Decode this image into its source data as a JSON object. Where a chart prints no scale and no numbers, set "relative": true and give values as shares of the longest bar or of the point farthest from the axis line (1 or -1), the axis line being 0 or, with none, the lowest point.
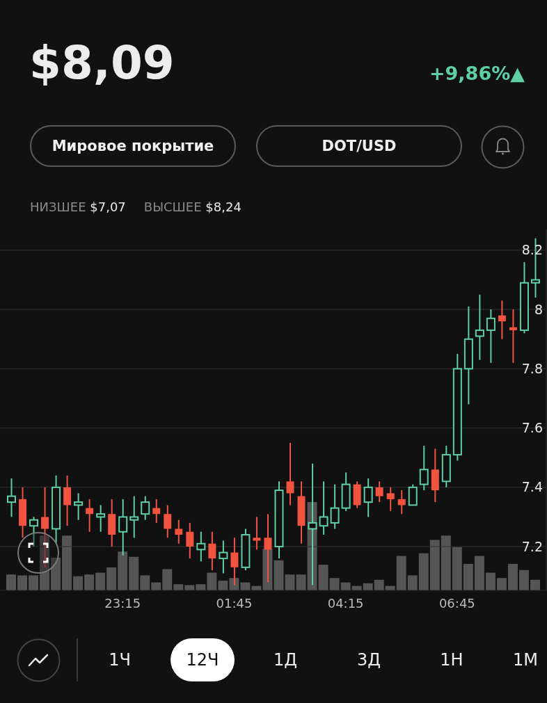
{
  "chart_data": [
    {
      "type": "candlestick",
      "title": "$8,09",
      "annotations": [
        "+9,86%▲",
        "Мировое покрытие",
        "DOT/USD",
        "НИЗШЕЕ",
        "$7,07",
        "ВЫСШЕЕ",
        "$8,24",
        "1Ч",
        "12Ч",
        "1Д",
        "3Д",
        "1Н",
        "1М"
      ],
      "categories": [
        null,
        null,
        null,
        null,
        null,
        null,
        null,
        null,
        null,
        null,
        "23:15",
        null,
        null,
        null,
        null,
        null,
        null,
        null,
        null,
        null,
        "01:45",
        null,
        null,
        null,
        null,
        null,
        null,
        null,
        null,
        null,
        "04:15",
        null,
        null,
        null,
        null,
        null,
        null,
        null,
        null,
        null,
        "06:45",
        null,
        null,
        null,
        null,
        null,
        null,
        null
      ],
      "ohlc": [
        [
          7.35,
          7.43,
          7.3,
          7.37
        ],
        [
          7.36,
          7.4,
          7.23,
          7.27
        ],
        [
          7.27,
          7.3,
          7.2,
          7.29
        ],
        [
          7.3,
          7.4,
          7.13,
          7.26
        ],
        [
          7.26,
          7.44,
          7.21,
          7.4
        ],
        [
          7.4,
          7.44,
          7.27,
          7.34
        ],
        [
          7.34,
          7.38,
          7.29,
          7.35
        ],
        [
          7.33,
          7.36,
          7.25,
          7.31
        ],
        [
          7.3,
          7.34,
          7.25,
          7.31
        ],
        [
          7.31,
          7.36,
          7.2,
          7.24
        ],
        [
          7.25,
          7.36,
          7.17,
          7.3
        ],
        [
          7.29,
          7.37,
          7.23,
          7.3
        ],
        [
          7.31,
          7.37,
          7.29,
          7.35
        ],
        [
          7.33,
          7.36,
          7.28,
          7.31
        ],
        [
          7.31,
          7.34,
          7.23,
          7.26
        ],
        [
          7.26,
          7.29,
          7.21,
          7.24
        ],
        [
          7.25,
          7.28,
          7.16,
          7.2
        ],
        [
          7.19,
          7.25,
          7.15,
          7.21
        ],
        [
          7.21,
          7.25,
          7.12,
          7.16
        ],
        [
          7.16,
          7.22,
          7.11,
          7.18
        ],
        [
          7.18,
          7.23,
          7.07,
          7.13
        ],
        [
          7.13,
          7.26,
          7.12,
          7.24
        ],
        [
          7.23,
          7.3,
          7.19,
          7.22
        ],
        [
          7.23,
          7.31,
          7.08,
          7.19
        ],
        [
          7.2,
          7.42,
          7.16,
          7.39
        ],
        [
          7.42,
          7.55,
          7.34,
          7.38
        ],
        [
          7.37,
          7.42,
          7.21,
          7.27
        ],
        [
          7.26,
          7.48,
          7.07,
          7.28
        ],
        [
          7.27,
          7.42,
          7.24,
          7.3
        ],
        [
          7.28,
          7.41,
          7.26,
          7.33
        ],
        [
          7.33,
          7.45,
          7.32,
          7.41
        ],
        [
          7.41,
          7.42,
          7.33,
          7.34
        ],
        [
          7.35,
          7.43,
          7.3,
          7.4
        ],
        [
          7.4,
          7.42,
          7.35,
          7.37
        ],
        [
          7.38,
          7.4,
          7.32,
          7.36
        ],
        [
          7.36,
          7.39,
          7.31,
          7.34
        ],
        [
          7.34,
          7.41,
          7.34,
          7.4
        ],
        [
          7.41,
          7.54,
          7.39,
          7.46
        ],
        [
          7.46,
          7.53,
          7.35,
          7.39
        ],
        [
          7.42,
          7.54,
          7.4,
          7.51
        ],
        [
          7.51,
          7.85,
          7.49,
          7.8
        ],
        [
          7.8,
          8.01,
          7.68,
          7.9
        ],
        [
          7.91,
          8.05,
          7.83,
          7.93
        ],
        [
          7.93,
          8.0,
          7.82,
          7.97
        ],
        [
          7.98,
          8.03,
          7.9,
          7.96
        ],
        [
          7.94,
          8.0,
          7.82,
          7.93
        ],
        [
          7.93,
          8.16,
          7.92,
          8.09
        ],
        [
          8.09,
          8.24,
          8.04,
          8.1
        ]
      ],
      "colors": [
        "#5fcfa6",
        "#f0533f",
        "#5fcfa6",
        "#f0533f",
        "#5fcfa6",
        "#f0533f",
        "#5fcfa6",
        "#f0533f",
        "#5fcfa6",
        "#f0533f",
        "#5fcfa6",
        "#5fcfa6",
        "#5fcfa6",
        "#f0533f",
        "#f0533f",
        "#f0533f",
        "#f0533f",
        "#5fcfa6",
        "#f0533f",
        "#5fcfa6",
        "#f0533f",
        "#5fcfa6",
        "#f0533f",
        "#f0533f",
        "#5fcfa6",
        "#f0533f",
        "#f0533f",
        "#5fcfa6",
        "#5fcfa6",
        "#5fcfa6",
        "#5fcfa6",
        "#f0533f",
        "#5fcfa6",
        "#f0533f",
        "#f0533f",
        "#f0533f",
        "#5fcfa6",
        "#5fcfa6",
        "#f0533f",
        "#5fcfa6",
        "#5fcfa6",
        "#5fcfa6",
        "#5fcfa6",
        "#5fcfa6",
        "#f0533f",
        "#f0533f",
        "#5fcfa6",
        "#5fcfa6"
      ],
      "ylim": [
        7.05,
        8.27
      ],
      "yticks": [
        7.2,
        7.4,
        7.6,
        7.8,
        8,
        8.2
      ],
      "grid": "y"
    },
    {
      "type": "bar",
      "relative": true,
      "color": "#555555",
      "categories": [
        null,
        null,
        null,
        null,
        null,
        null,
        null,
        null,
        null,
        null,
        null,
        null,
        null,
        null,
        null,
        null,
        null,
        null,
        null,
        null,
        null,
        null,
        null,
        null,
        null,
        null,
        null,
        null,
        null,
        null,
        null,
        null,
        null,
        null,
        null,
        null,
        null,
        null,
        null,
        null,
        null,
        null,
        null,
        null,
        null,
        null,
        null,
        null
      ],
      "values": [
        0.18,
        0.17,
        0.17,
        0.62,
        0.37,
        0.62,
        0.16,
        0.18,
        0.2,
        0.26,
        0.44,
        0.38,
        0.17,
        0.09,
        0.24,
        0.07,
        0.06,
        0.07,
        0.2,
        0.11,
        0.14,
        0.09,
        0.05,
        0.47,
        0.34,
        0.18,
        0.18,
        1,
        0.29,
        0.14,
        0.09,
        0.05,
        0.08,
        0.12,
        0.05,
        0.39,
        0.17,
        0.42,
        0.57,
        0.62,
        0.49,
        0.3,
        0.39,
        0.2,
        0.14,
        0.3,
        0.23,
        0.12
      ]
    }
  ]
}
